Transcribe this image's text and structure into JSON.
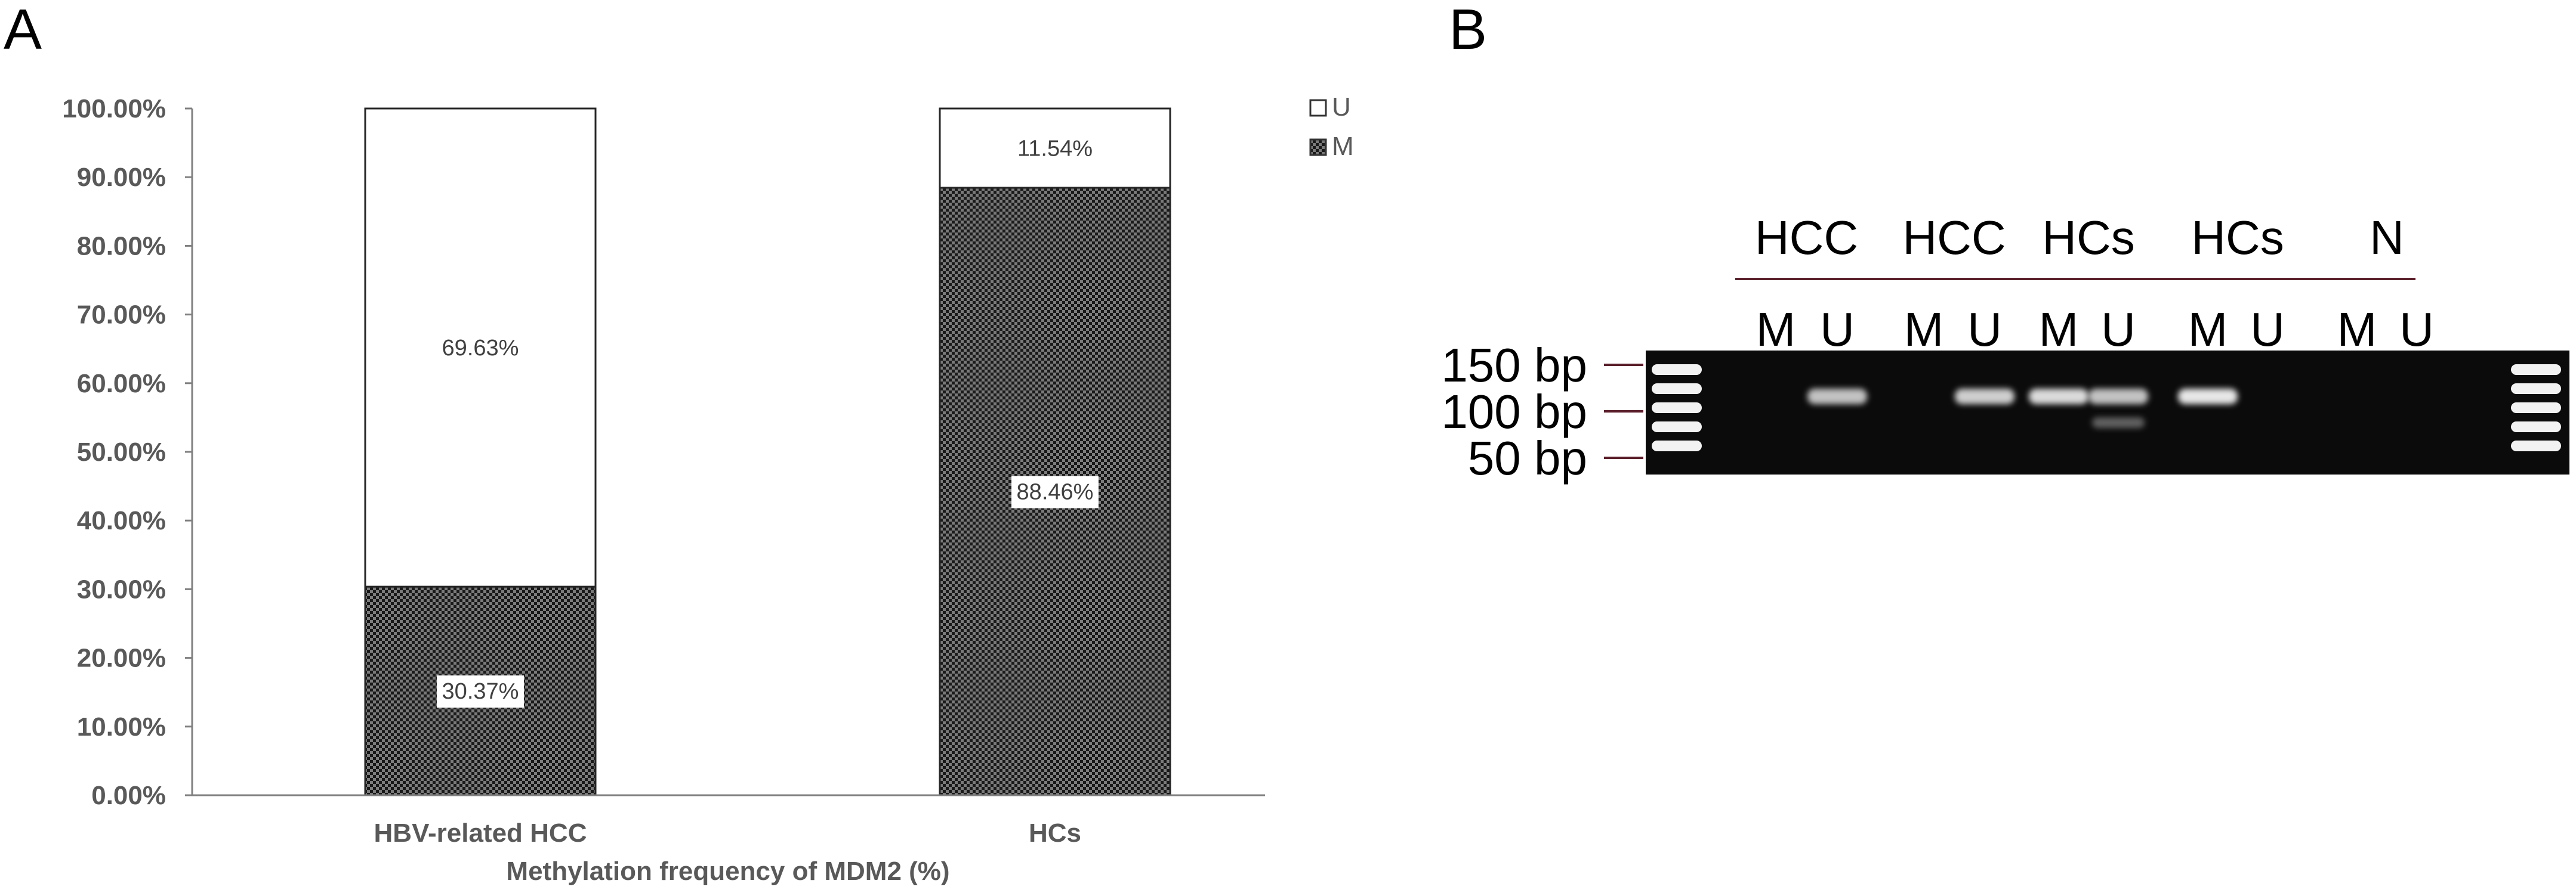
{
  "panels": {
    "a": "A",
    "b": "B"
  },
  "chart_data": {
    "type": "bar",
    "stacked": true,
    "categories": [
      "HBV-related HCC",
      "HCs"
    ],
    "series": [
      {
        "name": "M",
        "values": [
          30.37,
          88.46
        ],
        "labels": [
          "30.37%",
          "88.46%"
        ],
        "pattern": "dark-checker"
      },
      {
        "name": "U",
        "values": [
          69.63,
          11.54
        ],
        "labels": [
          "69.63%",
          "11.54%"
        ],
        "pattern": "white"
      }
    ],
    "xlabel": "Methylation frequency of MDM2 (%)",
    "ylabel": "",
    "ylim": [
      0,
      100
    ],
    "yticks": [
      "0.00%",
      "10.00%",
      "20.00%",
      "30.00%",
      "40.00%",
      "50.00%",
      "60.00%",
      "70.00%",
      "80.00%",
      "90.00%",
      "100.00%"
    ],
    "legend": {
      "position": "top-right",
      "entries": [
        "U",
        "M"
      ]
    },
    "grid": false
  },
  "gel": {
    "groups": [
      "HCC",
      "HCC",
      "HCs",
      "HCs",
      "N"
    ],
    "lanes": [
      "M",
      "U",
      "M",
      "U",
      "M",
      "U",
      "M",
      "U",
      "M",
      "U"
    ],
    "markers": [
      "150 bp",
      "100 bp",
      "50 bp"
    ],
    "band_intensity": [
      0.0,
      0.75,
      0.0,
      0.8,
      0.85,
      0.75,
      0.9,
      0.0,
      0.0,
      0.0
    ]
  }
}
